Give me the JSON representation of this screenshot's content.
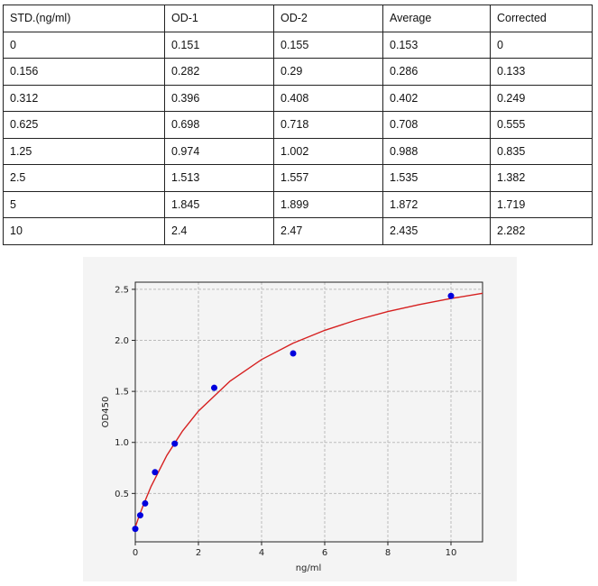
{
  "table": {
    "headers": [
      "STD.(ng/ml)",
      "OD-1",
      "OD-2",
      "Average",
      "Corrected"
    ],
    "rows": [
      [
        "0",
        "0.151",
        "0.155",
        "0.153",
        "0"
      ],
      [
        "0.156",
        "0.282",
        "0.29",
        "0.286",
        "0.133"
      ],
      [
        "0.312",
        "0.396",
        "0.408",
        "0.402",
        "0.249"
      ],
      [
        "0.625",
        "0.698",
        "0.718",
        "0.708",
        "0.555"
      ],
      [
        "1.25",
        "0.974",
        "1.002",
        "0.988",
        "0.835"
      ],
      [
        "2.5",
        "1.513",
        "1.557",
        "1.535",
        "1.382"
      ],
      [
        "5",
        "1.845",
        "1.899",
        "1.872",
        "1.719"
      ],
      [
        "10",
        "2.4",
        "2.47",
        "2.435",
        "2.282"
      ]
    ]
  },
  "chart_data": {
    "type": "scatter",
    "xlabel": "ng/ml",
    "ylabel": "OD450",
    "xlim": [
      0,
      11
    ],
    "ylim": [
      0.026,
      2.57
    ],
    "xticks": [
      "0",
      "2",
      "4",
      "6",
      "8",
      "10"
    ],
    "yticks": [
      "0.5",
      "1.0",
      "1.5",
      "2.0",
      "2.5"
    ],
    "grid": true,
    "points": {
      "x": [
        0,
        0.156,
        0.312,
        0.625,
        1.25,
        2.5,
        5,
        10
      ],
      "y": [
        0.153,
        0.286,
        0.402,
        0.708,
        0.988,
        1.535,
        1.872,
        2.435
      ],
      "color": "#0000dd"
    },
    "fit_curve": {
      "x": [
        0,
        0.1,
        0.25,
        0.5,
        1,
        1.5,
        2,
        3,
        4,
        5,
        6,
        7,
        8,
        9,
        10,
        11
      ],
      "y": [
        0.17,
        0.26,
        0.384,
        0.569,
        0.873,
        1.113,
        1.307,
        1.6,
        1.812,
        1.973,
        2.098,
        2.199,
        2.282,
        2.351,
        2.41,
        2.461
      ],
      "color": "#d62020"
    }
  }
}
